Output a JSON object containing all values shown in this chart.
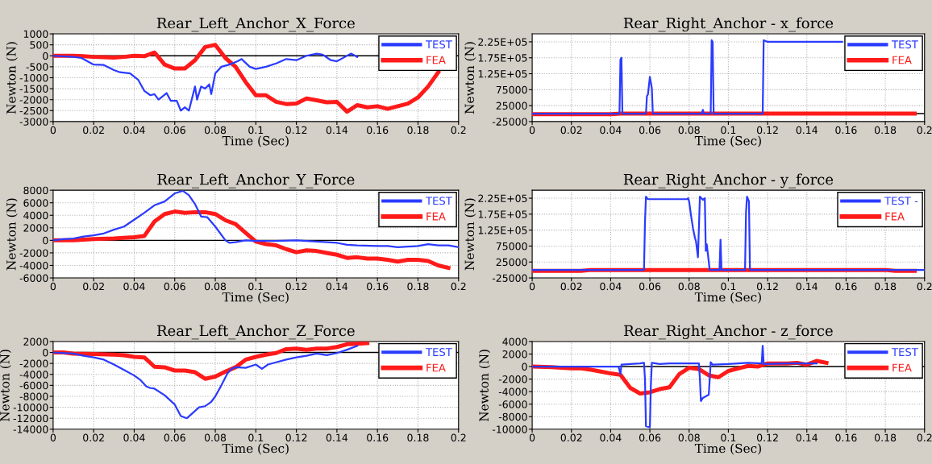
{
  "chart_data": [
    {
      "type": "line",
      "title": "Rear_Left_Anchor_X_Force",
      "xlabel": "Time (Sec)",
      "ylabel": "Newton (N)",
      "xlim": [
        0,
        0.2
      ],
      "xticks": [
        0,
        0.02,
        0.04,
        0.06,
        0.08,
        0.1,
        0.12,
        0.14,
        0.16,
        0.18,
        0.2
      ],
      "ylim": [
        -3000,
        1000
      ],
      "yticks": [
        -3000,
        -2500,
        -2000,
        -1500,
        -1000,
        -500,
        0,
        500,
        1000
      ],
      "grid": true,
      "legend": "top right",
      "ref_lines": [
        {
          "axis": "y",
          "value": 0,
          "color": "#000000"
        }
      ],
      "series": [
        {
          "name": "TEST",
          "color": "#2b3bff",
          "x": [
            0,
            0.01,
            0.014,
            0.018,
            0.02,
            0.025,
            0.03,
            0.033,
            0.038,
            0.042,
            0.045,
            0.048,
            0.05,
            0.052,
            0.056,
            0.058,
            0.061,
            0.063,
            0.065,
            0.067,
            0.07,
            0.071,
            0.073,
            0.075,
            0.077,
            0.078,
            0.08,
            0.083,
            0.087,
            0.091,
            0.093,
            0.097,
            0.1,
            0.105,
            0.11,
            0.115,
            0.12,
            0.125,
            0.13,
            0.133,
            0.137,
            0.14,
            0.144,
            0.147,
            0.15
          ],
          "values": [
            0,
            -50,
            -100,
            -300,
            -400,
            -420,
            -650,
            -750,
            -800,
            -1100,
            -1600,
            -1800,
            -1750,
            -2000,
            -1700,
            -2050,
            -2050,
            -2500,
            -2350,
            -2500,
            -1400,
            -2000,
            -1400,
            -1500,
            -1300,
            -1750,
            -800,
            -500,
            -400,
            -250,
            -150,
            -500,
            -600,
            -500,
            -350,
            -150,
            -200,
            0,
            100,
            50,
            -200,
            -250,
            -50,
            100,
            -50
          ]
        },
        {
          "name": "FEA",
          "color": "#ff1a1a",
          "x": [
            0,
            0.01,
            0.015,
            0.02,
            0.025,
            0.03,
            0.035,
            0.04,
            0.045,
            0.05,
            0.055,
            0.06,
            0.065,
            0.07,
            0.075,
            0.08,
            0.085,
            0.09,
            0.095,
            0.1,
            0.105,
            0.11,
            0.115,
            0.12,
            0.125,
            0.13,
            0.135,
            0.14,
            0.145,
            0.15,
            0.155,
            0.16,
            0.165,
            0.17,
            0.175,
            0.18,
            0.185,
            0.19
          ],
          "values": [
            0,
            0,
            -20,
            -50,
            -60,
            -80,
            -50,
            0,
            -20,
            150,
            -400,
            -580,
            -580,
            -200,
            400,
            500,
            -100,
            -500,
            -1200,
            -1800,
            -1800,
            -2100,
            -2200,
            -2180,
            -1950,
            -2030,
            -2120,
            -2100,
            -2550,
            -2250,
            -2350,
            -2300,
            -2420,
            -2300,
            -2180,
            -1900,
            -1400,
            -750
          ]
        }
      ]
    },
    {
      "type": "line",
      "title": "Rear_Right_Anchor - x_force",
      "xlabel": "Time (Sec)",
      "ylabel": "Newton (N)",
      "xlim": [
        0,
        0.2
      ],
      "xticks": [
        0,
        0.02,
        0.04,
        0.06,
        0.08,
        0.1,
        0.12,
        0.14,
        0.16,
        0.18,
        0.2
      ],
      "ylim": [
        -25000,
        250000
      ],
      "yticks": [
        -25000,
        25000,
        75000,
        {
          "value": 125000,
          "label": "1.25E+05"
        },
        {
          "value": 175000,
          "label": "1.75E+05"
        },
        {
          "value": 225000,
          "label": "2.25E+05"
        }
      ],
      "grid": true,
      "legend": "top right",
      "ref_lines": [
        {
          "axis": "y",
          "value": 0,
          "color": "#000000"
        }
      ],
      "series": [
        {
          "name": "TEST",
          "color": "#2b3bff",
          "x": [
            0,
            0.0445,
            0.045,
            0.0455,
            0.046,
            0.058,
            0.0585,
            0.059,
            0.06,
            0.061,
            0.0615,
            0.0865,
            0.087,
            0.0875,
            0.091,
            0.0915,
            0.092,
            0.0925,
            0.1175,
            0.118,
            0.12,
            0.158
          ],
          "values": [
            0,
            0,
            170000,
            175000,
            0,
            0,
            55000,
            60000,
            115000,
            80000,
            0,
            0,
            12000,
            0,
            0,
            230000,
            225000,
            0,
            0,
            230000,
            225000,
            225000
          ]
        },
        {
          "name": "FEA",
          "color": "#ff1a1a",
          "x": [
            0,
            0.04,
            0.045,
            0.195
          ],
          "values": [
            -2000,
            -2000,
            0,
            0
          ]
        }
      ]
    },
    {
      "type": "line",
      "title": "Rear_Left_Anchor_Y_Force",
      "xlabel": "Time (Sec)",
      "ylabel": "Newton (N)",
      "xlim": [
        0,
        0.2
      ],
      "xticks": [
        0,
        0.02,
        0.04,
        0.06,
        0.08,
        0.1,
        0.12,
        0.14,
        0.16,
        0.18,
        0.2
      ],
      "ylim": [
        -6000,
        8000
      ],
      "yticks": [
        -6000,
        -4000,
        -2000,
        0,
        2000,
        4000,
        6000,
        8000
      ],
      "grid": true,
      "legend": "top right",
      "ref_lines": [
        {
          "axis": "y",
          "value": 0,
          "color": "#000000"
        }
      ],
      "series": [
        {
          "name": "TEST",
          "color": "#2b3bff",
          "x": [
            0,
            0.005,
            0.01,
            0.015,
            0.02,
            0.025,
            0.03,
            0.035,
            0.04,
            0.045,
            0.05,
            0.055,
            0.06,
            0.064,
            0.067,
            0.07,
            0.073,
            0.076,
            0.08,
            0.085,
            0.087,
            0.09,
            0.095,
            0.1,
            0.11,
            0.12,
            0.13,
            0.14,
            0.145,
            0.15,
            0.16,
            0.165,
            0.17,
            0.18,
            0.185,
            0.19,
            0.195,
            0.2
          ],
          "values": [
            0,
            200,
            300,
            600,
            800,
            1100,
            1700,
            2200,
            3300,
            4400,
            5600,
            6200,
            7500,
            7900,
            7200,
            5800,
            3800,
            3700,
            2200,
            0,
            -400,
            -300,
            0,
            -100,
            -100,
            0,
            -200,
            -400,
            -700,
            -800,
            -900,
            -900,
            -1100,
            -900,
            -600,
            -800,
            -800,
            -1100
          ]
        },
        {
          "name": "FEA",
          "color": "#ff1a1a",
          "x": [
            0,
            0.01,
            0.02,
            0.03,
            0.04,
            0.045,
            0.05,
            0.055,
            0.06,
            0.065,
            0.07,
            0.075,
            0.08,
            0.085,
            0.09,
            0.095,
            0.1,
            0.105,
            0.11,
            0.115,
            0.12,
            0.125,
            0.13,
            0.135,
            0.14,
            0.145,
            0.15,
            0.155,
            0.16,
            0.165,
            0.17,
            0.175,
            0.18,
            0.185,
            0.19,
            0.195
          ],
          "values": [
            0,
            0,
            200,
            300,
            500,
            700,
            3000,
            4200,
            4600,
            4400,
            4500,
            4500,
            4200,
            3200,
            2600,
            1200,
            -200,
            -600,
            -800,
            -1400,
            -1900,
            -1600,
            -1700,
            -2000,
            -2300,
            -2800,
            -2700,
            -2900,
            -2900,
            -3100,
            -3400,
            -3100,
            -3100,
            -3300,
            -4000,
            -4400
          ]
        }
      ]
    },
    {
      "type": "line",
      "title": "Rear_Right_Anchor - y_force",
      "xlabel": "Time (Sec)",
      "ylabel": "Newton (N)",
      "xlim": [
        0,
        0.2
      ],
      "xticks": [
        0,
        0.02,
        0.04,
        0.06,
        0.08,
        0.1,
        0.12,
        0.14,
        0.16,
        0.18,
        0.2
      ],
      "ylim": [
        -25000,
        250000
      ],
      "yticks": [
        -25000,
        25000,
        75000,
        {
          "value": 125000,
          "label": "1.25E+05"
        },
        {
          "value": 175000,
          "label": "1.75E+05"
        },
        {
          "value": 225000,
          "label": "2.25E+05"
        }
      ],
      "grid": true,
      "legend": "top right",
      "ref_lines": [
        {
          "axis": "y",
          "value": 0,
          "color": "#000000"
        }
      ],
      "series": [
        {
          "name": "TEST -",
          "color": "#2b3bff",
          "x": [
            0,
            0.057,
            0.0575,
            0.058,
            0.059,
            0.079,
            0.0795,
            0.08,
            0.081,
            0.082,
            0.083,
            0.0835,
            0.0845,
            0.0855,
            0.087,
            0.088,
            0.0885,
            0.089,
            0.0905,
            0.0955,
            0.096,
            0.0965,
            0.1085,
            0.109,
            0.1095,
            0.1105,
            0.111,
            0.2
          ],
          "values": [
            0,
            0,
            150000,
            230000,
            222000,
            222000,
            225000,
            215000,
            170000,
            130000,
            100000,
            90000,
            40000,
            230000,
            220000,
            225000,
            60000,
            80000,
            0,
            0,
            95000,
            0,
            0,
            180000,
            230000,
            215000,
            0,
            0
          ]
        },
        {
          "name": "FEA",
          "color": "#ff1a1a",
          "x": [
            0,
            0.025,
            0.03,
            0.18,
            0.185,
            0.195
          ],
          "values": [
            -3000,
            -3000,
            0,
            0,
            -3000,
            -3000
          ]
        }
      ]
    },
    {
      "type": "line",
      "title": "Rear_Left_Anchor_Z_Force",
      "xlabel": "Time (Sec)",
      "ylabel": "Newton (N)",
      "xlim": [
        0,
        0.2
      ],
      "xticks": [
        0,
        0.02,
        0.04,
        0.06,
        0.08,
        0.1,
        0.12,
        0.14,
        0.16,
        0.18,
        0.2
      ],
      "ylim": [
        -14000,
        2000
      ],
      "yticks": [
        -14000,
        -12000,
        -10000,
        -8000,
        -6000,
        -4000,
        -2000,
        0,
        2000
      ],
      "grid": true,
      "legend": "top right",
      "ref_lines": [
        {
          "axis": "y",
          "value": 0,
          "color": "#000000"
        }
      ],
      "series": [
        {
          "name": "TEST",
          "color": "#2b3bff",
          "x": [
            0,
            0.01,
            0.015,
            0.02,
            0.025,
            0.03,
            0.035,
            0.04,
            0.043,
            0.046,
            0.048,
            0.05,
            0.055,
            0.06,
            0.063,
            0.066,
            0.069,
            0.072,
            0.075,
            0.078,
            0.08,
            0.083,
            0.086,
            0.088,
            0.09,
            0.095,
            0.1,
            0.103,
            0.106,
            0.11,
            0.115,
            0.12,
            0.125,
            0.13,
            0.135,
            0.14,
            0.145,
            0.15
          ],
          "values": [
            0,
            -200,
            -600,
            -900,
            -1300,
            -2200,
            -3200,
            -4200,
            -5000,
            -6200,
            -6500,
            -6600,
            -7800,
            -9500,
            -11600,
            -12000,
            -11000,
            -10000,
            -9800,
            -9000,
            -8000,
            -6000,
            -3800,
            -3000,
            -2700,
            -2800,
            -2200,
            -3000,
            -2200,
            -1800,
            -1300,
            -900,
            -600,
            -200,
            -500,
            -100,
            500,
            1200
          ]
        },
        {
          "name": "FEA",
          "color": "#ff1a1a",
          "x": [
            0,
            0.005,
            0.01,
            0.02,
            0.03,
            0.035,
            0.04,
            0.045,
            0.05,
            0.055,
            0.06,
            0.065,
            0.07,
            0.075,
            0.08,
            0.085,
            0.09,
            0.095,
            0.1,
            0.105,
            0.11,
            0.115,
            0.12,
            0.125,
            0.13,
            0.135,
            0.14,
            0.145,
            0.15,
            0.155
          ],
          "values": [
            0,
            0,
            -200,
            -300,
            -400,
            -500,
            -800,
            -900,
            -2600,
            -2700,
            -3300,
            -3300,
            -3600,
            -4800,
            -4400,
            -3500,
            -2700,
            -1300,
            -800,
            -400,
            -100,
            600,
            700,
            500,
            700,
            700,
            1000,
            1500,
            1600,
            1700
          ]
        }
      ]
    },
    {
      "type": "line",
      "title": "Rear_Right_Anchor - z_force",
      "xlabel": "Time (Sec)",
      "ylabel": "Newton (N)",
      "xlim": [
        0,
        0.2
      ],
      "xticks": [
        0,
        0.02,
        0.04,
        0.06,
        0.08,
        0.1,
        0.12,
        0.14,
        0.16,
        0.18,
        0.2
      ],
      "ylim": [
        -10000,
        4000
      ],
      "yticks": [
        -10000,
        -8000,
        -6000,
        -4000,
        -2000,
        0,
        2000,
        4000
      ],
      "grid": true,
      "legend": "top right",
      "ref_lines": [
        {
          "axis": "y",
          "value": 0,
          "color": "#000000"
        }
      ],
      "series": [
        {
          "name": "TEST",
          "color": "#2b3bff",
          "x": [
            0,
            0.044,
            0.045,
            0.0455,
            0.05,
            0.055,
            0.057,
            0.0575,
            0.058,
            0.06,
            0.0605,
            0.061,
            0.065,
            0.07,
            0.085,
            0.0855,
            0.086,
            0.087,
            0.09,
            0.0905,
            0.091,
            0.092,
            0.1,
            0.11,
            0.117,
            0.1175,
            0.118,
            0.13,
            0.145
          ],
          "values": [
            0,
            0,
            -1200,
            300,
            400,
            500,
            600,
            -2000,
            -9500,
            -9700,
            -3000,
            600,
            400,
            500,
            500,
            -2000,
            -5500,
            -5000,
            -4500,
            -2000,
            700,
            300,
            400,
            600,
            500,
            3300,
            400,
            500,
            500
          ]
        },
        {
          "name": "FEA",
          "color": "#ff1a1a",
          "x": [
            0,
            0.01,
            0.02,
            0.025,
            0.03,
            0.035,
            0.04,
            0.045,
            0.05,
            0.055,
            0.06,
            0.065,
            0.07,
            0.075,
            0.08,
            0.085,
            0.09,
            0.095,
            0.1,
            0.105,
            0.11,
            0.115,
            0.12,
            0.125,
            0.13,
            0.135,
            0.14,
            0.145,
            0.15
          ],
          "values": [
            0,
            -100,
            -300,
            -300,
            -500,
            -800,
            -1100,
            -1300,
            -3400,
            -4300,
            -4100,
            -3600,
            -3300,
            -1200,
            -200,
            -400,
            -1400,
            -1700,
            -700,
            -300,
            100,
            0,
            500,
            500,
            500,
            600,
            300,
            900,
            600
          ]
        }
      ]
    }
  ]
}
